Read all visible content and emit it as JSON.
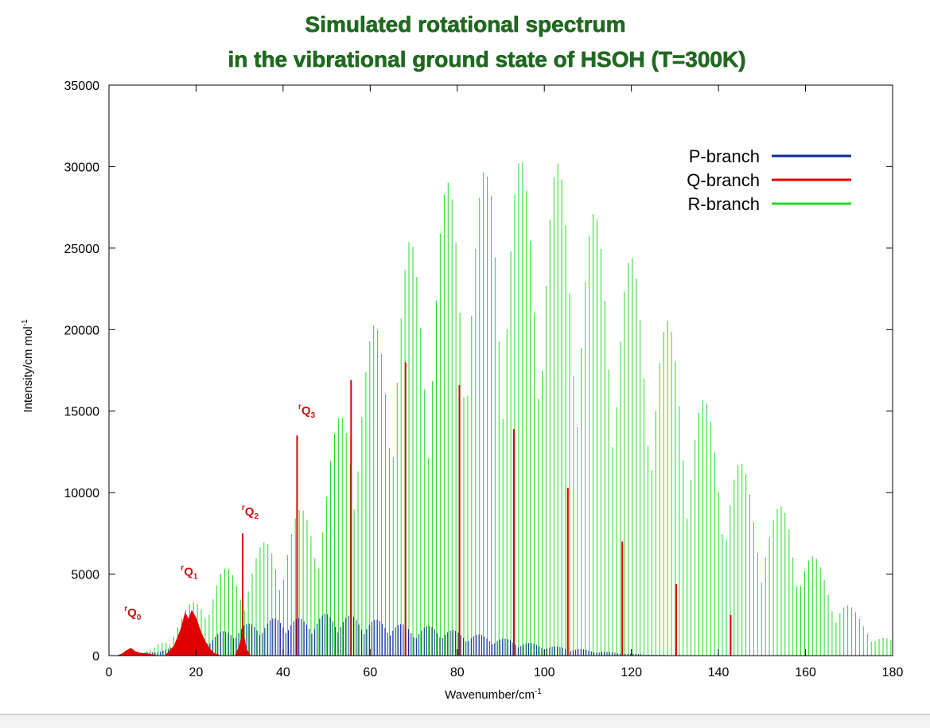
{
  "chart_data": {
    "type": "line",
    "title": [
      "Simulated rotational spectrum",
      "in the vibrational ground state  of HSOH (T=300K)"
    ],
    "xlabel": "Wavenumber/cm",
    "xlabel_sup": "-1",
    "ylabel": "Intensity/cm mol",
    "ylabel_sup": "-1",
    "xlim": [
      0,
      180
    ],
    "ylim": [
      0,
      35000
    ],
    "xticks": [
      0,
      20,
      40,
      60,
      80,
      100,
      120,
      140,
      160,
      180
    ],
    "yticks": [
      0,
      5000,
      10000,
      15000,
      20000,
      25000,
      30000,
      35000
    ],
    "grid": false,
    "legend_position": "top-right",
    "series": [
      {
        "name": "P-branch",
        "color": "#0a2a9e",
        "style": "stick",
        "envelope": [
          [
            0,
            0
          ],
          [
            5,
            80
          ],
          [
            10,
            250
          ],
          [
            15,
            500
          ],
          [
            20,
            900
          ],
          [
            25,
            1400
          ],
          [
            30,
            1850
          ],
          [
            35,
            2150
          ],
          [
            40,
            2400
          ],
          [
            45,
            2250
          ],
          [
            50,
            2600
          ],
          [
            55,
            2500
          ],
          [
            60,
            2250
          ],
          [
            65,
            2100
          ],
          [
            70,
            1750
          ],
          [
            75,
            1850
          ],
          [
            80,
            1500
          ],
          [
            85,
            1300
          ],
          [
            90,
            1100
          ],
          [
            95,
            850
          ],
          [
            100,
            650
          ],
          [
            105,
            500
          ],
          [
            110,
            350
          ],
          [
            115,
            220
          ],
          [
            120,
            120
          ],
          [
            125,
            60
          ],
          [
            130,
            20
          ],
          [
            135,
            0
          ]
        ]
      },
      {
        "name": "Q-branch",
        "color": "#e00000",
        "style": "stick",
        "filled_bands": [
          {
            "label": "rQ0",
            "points": [
              [
                2,
                0
              ],
              [
                3,
                100
              ],
              [
                4,
                300
              ],
              [
                5,
                450
              ],
              [
                6,
                250
              ],
              [
                7,
                150
              ],
              [
                9,
                100
              ],
              [
                11,
                0
              ]
            ]
          },
          {
            "label": "rQ1",
            "points": [
              [
                13,
                0
              ],
              [
                15,
                600
              ],
              [
                16.5,
                1600
              ],
              [
                17.5,
                2600
              ],
              [
                18.3,
                2200
              ],
              [
                19,
                2750
              ],
              [
                20,
                2300
              ],
              [
                21,
                1500
              ],
              [
                22,
                900
              ],
              [
                23,
                450
              ],
              [
                24,
                150
              ],
              [
                25.5,
                0
              ]
            ]
          },
          {
            "label": "rQ2",
            "points": [
              [
                29,
                0
              ],
              [
                30,
                600
              ],
              [
                30.8,
                1500
              ],
              [
                31.5,
                400
              ],
              [
                32.5,
                0
              ]
            ]
          }
        ],
        "sticks": [
          [
            30.7,
            7500
          ],
          [
            43.2,
            13500
          ],
          [
            55.6,
            16900
          ],
          [
            68.1,
            18000
          ],
          [
            80.5,
            16600
          ],
          [
            93.0,
            13900
          ],
          [
            105.4,
            10300
          ],
          [
            117.9,
            7000
          ],
          [
            130.3,
            4400
          ],
          [
            142.8,
            2500
          ]
        ]
      },
      {
        "name": "R-branch",
        "color": "#22dd22",
        "style": "stick",
        "envelope": [
          [
            5,
            0
          ],
          [
            10,
            400
          ],
          [
            14,
            1500
          ],
          [
            18,
            3000
          ],
          [
            22,
            4300
          ],
          [
            26,
            5300
          ],
          [
            30,
            5600
          ],
          [
            34,
            6500
          ],
          [
            38,
            7700
          ],
          [
            42,
            8500
          ],
          [
            46,
            9500
          ],
          [
            50,
            11800
          ],
          [
            53,
            15000
          ],
          [
            56,
            18500
          ],
          [
            60,
            19800
          ],
          [
            63,
            21500
          ],
          [
            66,
            24000
          ],
          [
            69,
            25500
          ],
          [
            72,
            25200
          ],
          [
            76,
            28500
          ],
          [
            80,
            29700
          ],
          [
            84,
            29000
          ],
          [
            87,
            30000
          ],
          [
            88,
            31500
          ],
          [
            92,
            31000
          ],
          [
            96,
            30200
          ],
          [
            100,
            30900
          ],
          [
            104,
            30000
          ],
          [
            108,
            28500
          ],
          [
            112,
            27000
          ],
          [
            116,
            26000
          ],
          [
            120,
            24500
          ],
          [
            124,
            22500
          ],
          [
            128,
            20800
          ],
          [
            132,
            18500
          ],
          [
            136,
            16200
          ],
          [
            140,
            14000
          ],
          [
            144,
            12500
          ],
          [
            148,
            10500
          ],
          [
            152,
            9000
          ],
          [
            156,
            9300
          ],
          [
            160,
            7000
          ],
          [
            164,
            5300
          ],
          [
            168,
            3900
          ],
          [
            172,
            2500
          ],
          [
            176,
            1500
          ],
          [
            180,
            900
          ]
        ]
      }
    ],
    "annotations": [
      {
        "text": "r",
        "main": "Q",
        "sub": "0",
        "x": 3.5,
        "y": 2400
      },
      {
        "text": "r",
        "main": "Q",
        "sub": "1",
        "x": 16.5,
        "y": 4900
      },
      {
        "text": "r",
        "main": "Q",
        "sub": "2",
        "x": 30.5,
        "y": 8600
      },
      {
        "text": "r",
        "main": "Q",
        "sub": "3",
        "x": 43.5,
        "y": 14800
      }
    ]
  }
}
